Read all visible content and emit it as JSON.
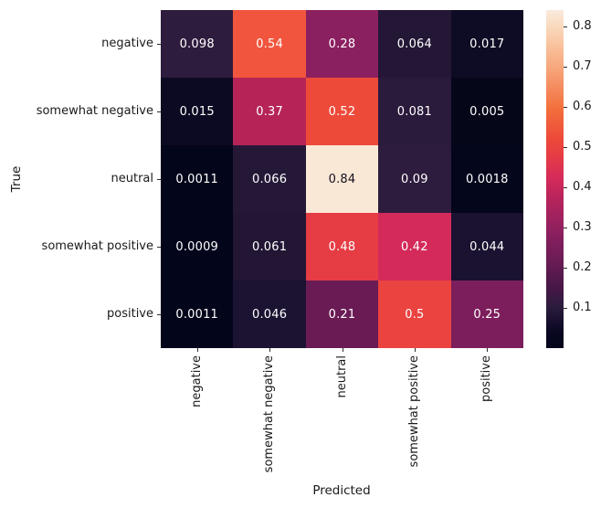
{
  "chart_data": {
    "type": "heatmap",
    "title": "",
    "xlabel": "Predicted",
    "ylabel": "True",
    "x_categories": [
      "negative",
      "somewhat negative",
      "neutral",
      "somewhat positive",
      "positive"
    ],
    "y_categories": [
      "negative",
      "somewhat negative",
      "neutral",
      "somewhat positive",
      "positive"
    ],
    "values": [
      [
        0.098,
        0.54,
        0.28,
        0.064,
        0.017
      ],
      [
        0.015,
        0.37,
        0.52,
        0.081,
        0.005
      ],
      [
        0.0011,
        0.066,
        0.84,
        0.09,
        0.0018
      ],
      [
        0.0009,
        0.061,
        0.48,
        0.42,
        0.044
      ],
      [
        0.0011,
        0.046,
        0.21,
        0.5,
        0.25
      ]
    ],
    "cell_labels": [
      [
        "0.098",
        "0.54",
        "0.28",
        "0.064",
        "0.017"
      ],
      [
        "0.015",
        "0.37",
        "0.52",
        "0.081",
        "0.005"
      ],
      [
        "0.0011",
        "0.066",
        "0.84",
        "0.09",
        "0.0018"
      ],
      [
        "0.0009",
        "0.061",
        "0.48",
        "0.42",
        "0.044"
      ],
      [
        "0.0011",
        "0.046",
        "0.21",
        "0.5",
        "0.25"
      ]
    ],
    "cell_colors": [
      [
        "#2e1c3e",
        "#f1553d",
        "#8b2060",
        "#241736",
        "#0e0b24"
      ],
      [
        "#0c0a22",
        "#b62457",
        "#ed4a3a",
        "#2a1a3b",
        "#060619"
      ],
      [
        "#03051a",
        "#251837",
        "#fae8d6",
        "#2d1c3e",
        "#04061b"
      ],
      [
        "#03051a",
        "#221634",
        "#e63c44",
        "#d42a5a",
        "#1a1230"
      ],
      [
        "#03051a",
        "#1b1331",
        "#6a1b54",
        "#ea4340",
        "#7d1e5c"
      ]
    ],
    "annotation_color_light": "#ffffff",
    "annotation_color_dark": "#14101f",
    "colormap": "rocket",
    "vmin": 0.0009,
    "vmax": 0.84,
    "grid": false,
    "legend_position": "right-colorbar",
    "colorbar": {
      "tick_labels": [
        "0.8",
        "0.7",
        "0.6",
        "0.5",
        "0.4",
        "0.3",
        "0.2",
        "0.1"
      ],
      "tick_values": [
        0.8,
        0.7,
        0.6,
        0.5,
        0.4,
        0.3,
        0.2,
        0.1
      ],
      "gradient": [
        {
          "pos": 0.0,
          "color": "#03051a"
        },
        {
          "pos": 0.05,
          "color": "#0a0722"
        },
        {
          "pos": 0.12,
          "color": "#2b1c3c"
        },
        {
          "pos": 0.18,
          "color": "#471748"
        },
        {
          "pos": 0.25,
          "color": "#671b53"
        },
        {
          "pos": 0.31,
          "color": "#7f1e5c"
        },
        {
          "pos": 0.37,
          "color": "#98215f"
        },
        {
          "pos": 0.44,
          "color": "#b6245c"
        },
        {
          "pos": 0.5,
          "color": "#d42a5a"
        },
        {
          "pos": 0.57,
          "color": "#e63c44"
        },
        {
          "pos": 0.62,
          "color": "#ed4a39"
        },
        {
          "pos": 0.71,
          "color": "#f3703c"
        },
        {
          "pos": 0.77,
          "color": "#f58b5e"
        },
        {
          "pos": 0.83,
          "color": "#f7a77c"
        },
        {
          "pos": 0.9,
          "color": "#f9c49f"
        },
        {
          "pos": 0.95,
          "color": "#f9d9bd"
        },
        {
          "pos": 1.0,
          "color": "#faebdd"
        }
      ]
    }
  }
}
